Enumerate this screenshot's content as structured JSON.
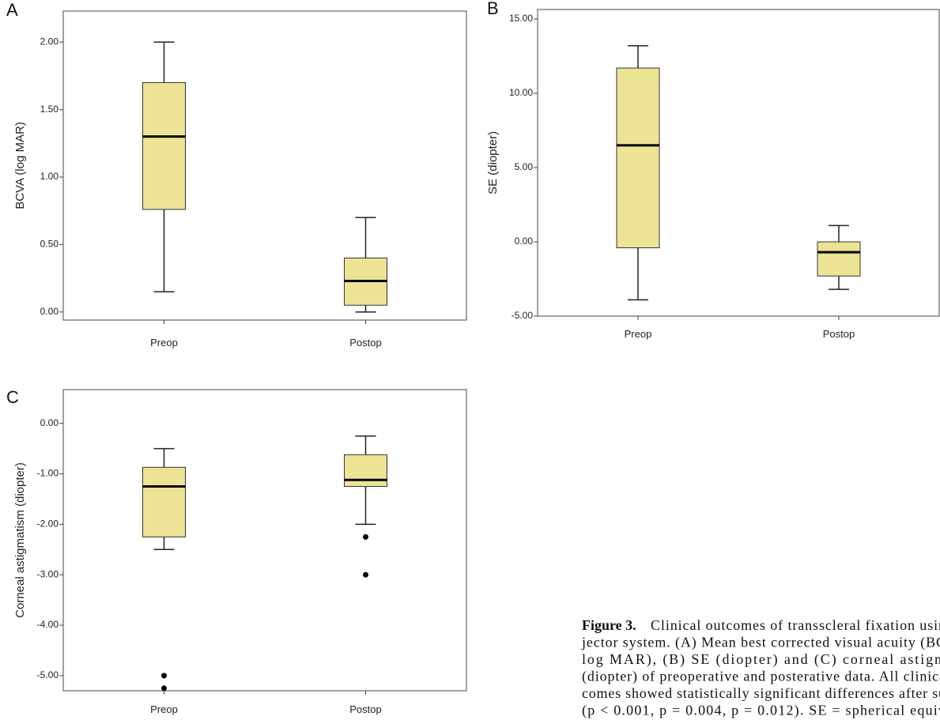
{
  "chart_data": [
    {
      "type": "box",
      "label": "A",
      "ylabel": "BCVA (log MAR)",
      "categories": [
        "Preop",
        "Postop"
      ],
      "color": "#ede395",
      "boxes": [
        {
          "whisker_low": 0.15,
          "q1": 0.76,
          "median": 1.3,
          "q3": 1.7,
          "whisker_high": 2.0,
          "outliers": []
        },
        {
          "whisker_low": 0.0,
          "q1": 0.05,
          "median": 0.23,
          "q3": 0.4,
          "whisker_high": 0.7,
          "outliers": []
        }
      ],
      "ylim": [
        -0.06,
        2.23
      ],
      "yticks": [
        {
          "value": 0,
          "label": "0.00"
        },
        {
          "value": 0.5,
          "label": "0.50"
        },
        {
          "value": 1,
          "label": "1.00"
        },
        {
          "value": 1.5,
          "label": "1.50"
        },
        {
          "value": 2,
          "label": "2.00"
        }
      ]
    },
    {
      "type": "box",
      "label": "B",
      "ylabel": "SE (diopter)",
      "categories": [
        "Preop",
        "Postop"
      ],
      "color": "#ede395",
      "boxes": [
        {
          "whisker_low": -3.9,
          "q1": -0.4,
          "median": 6.5,
          "q3": 11.7,
          "whisker_high": 13.2,
          "outliers": []
        },
        {
          "whisker_low": -3.2,
          "q1": -2.3,
          "median": -0.7,
          "q3": 0.0,
          "whisker_high": 1.1,
          "outliers": []
        }
      ],
      "ylim": [
        -5,
        15.64
      ],
      "yticks": [
        {
          "value": -5,
          "label": "-5.00"
        },
        {
          "value": 0,
          "label": "0.00"
        },
        {
          "value": 5,
          "label": "5.00"
        },
        {
          "value": 10,
          "label": "10.00"
        },
        {
          "value": 15,
          "label": "15.00"
        }
      ]
    },
    {
      "type": "box",
      "label": "C",
      "ylabel": "Corneal astigmatism (diopter)",
      "categories": [
        "Preop",
        "Postop"
      ],
      "color": "#ede395",
      "boxes": [
        {
          "whisker_low": -2.5,
          "q1": -2.25,
          "median": -1.25,
          "q3": -0.87,
          "whisker_high": -0.5,
          "outliers": [
            -5.0,
            -5.25
          ]
        },
        {
          "whisker_low": -2.0,
          "q1": -1.25,
          "median": -1.12,
          "q3": -0.62,
          "whisker_high": -0.25,
          "outliers": [
            -2.25,
            -3.0
          ]
        }
      ],
      "ylim": [
        -5.3,
        0.67
      ],
      "yticks": [
        {
          "value": -5,
          "label": "-5.00"
        },
        {
          "value": -4,
          "label": "-4.00"
        },
        {
          "value": -3,
          "label": "-3.00"
        },
        {
          "value": -2,
          "label": "-2.00"
        },
        {
          "value": -1,
          "label": "-1.00"
        },
        {
          "value": 0,
          "label": "0.00"
        }
      ]
    }
  ],
  "caption": {
    "figure": "Figure 3.",
    "lines": [
      "Clinical outcomes of transscleral fixation usir",
      "jector system. (A) Mean best corrected visual acuity (BC",
      "log MAR), (B) SE (diopter) and (C) corneal astigm",
      "(diopter) of preoperative and posterative data. All clinica",
      "comes showed statistically significant differences after su",
      "(p < 0.001, p = 0.004, p = 0.012). SE = spherical equiv"
    ]
  }
}
